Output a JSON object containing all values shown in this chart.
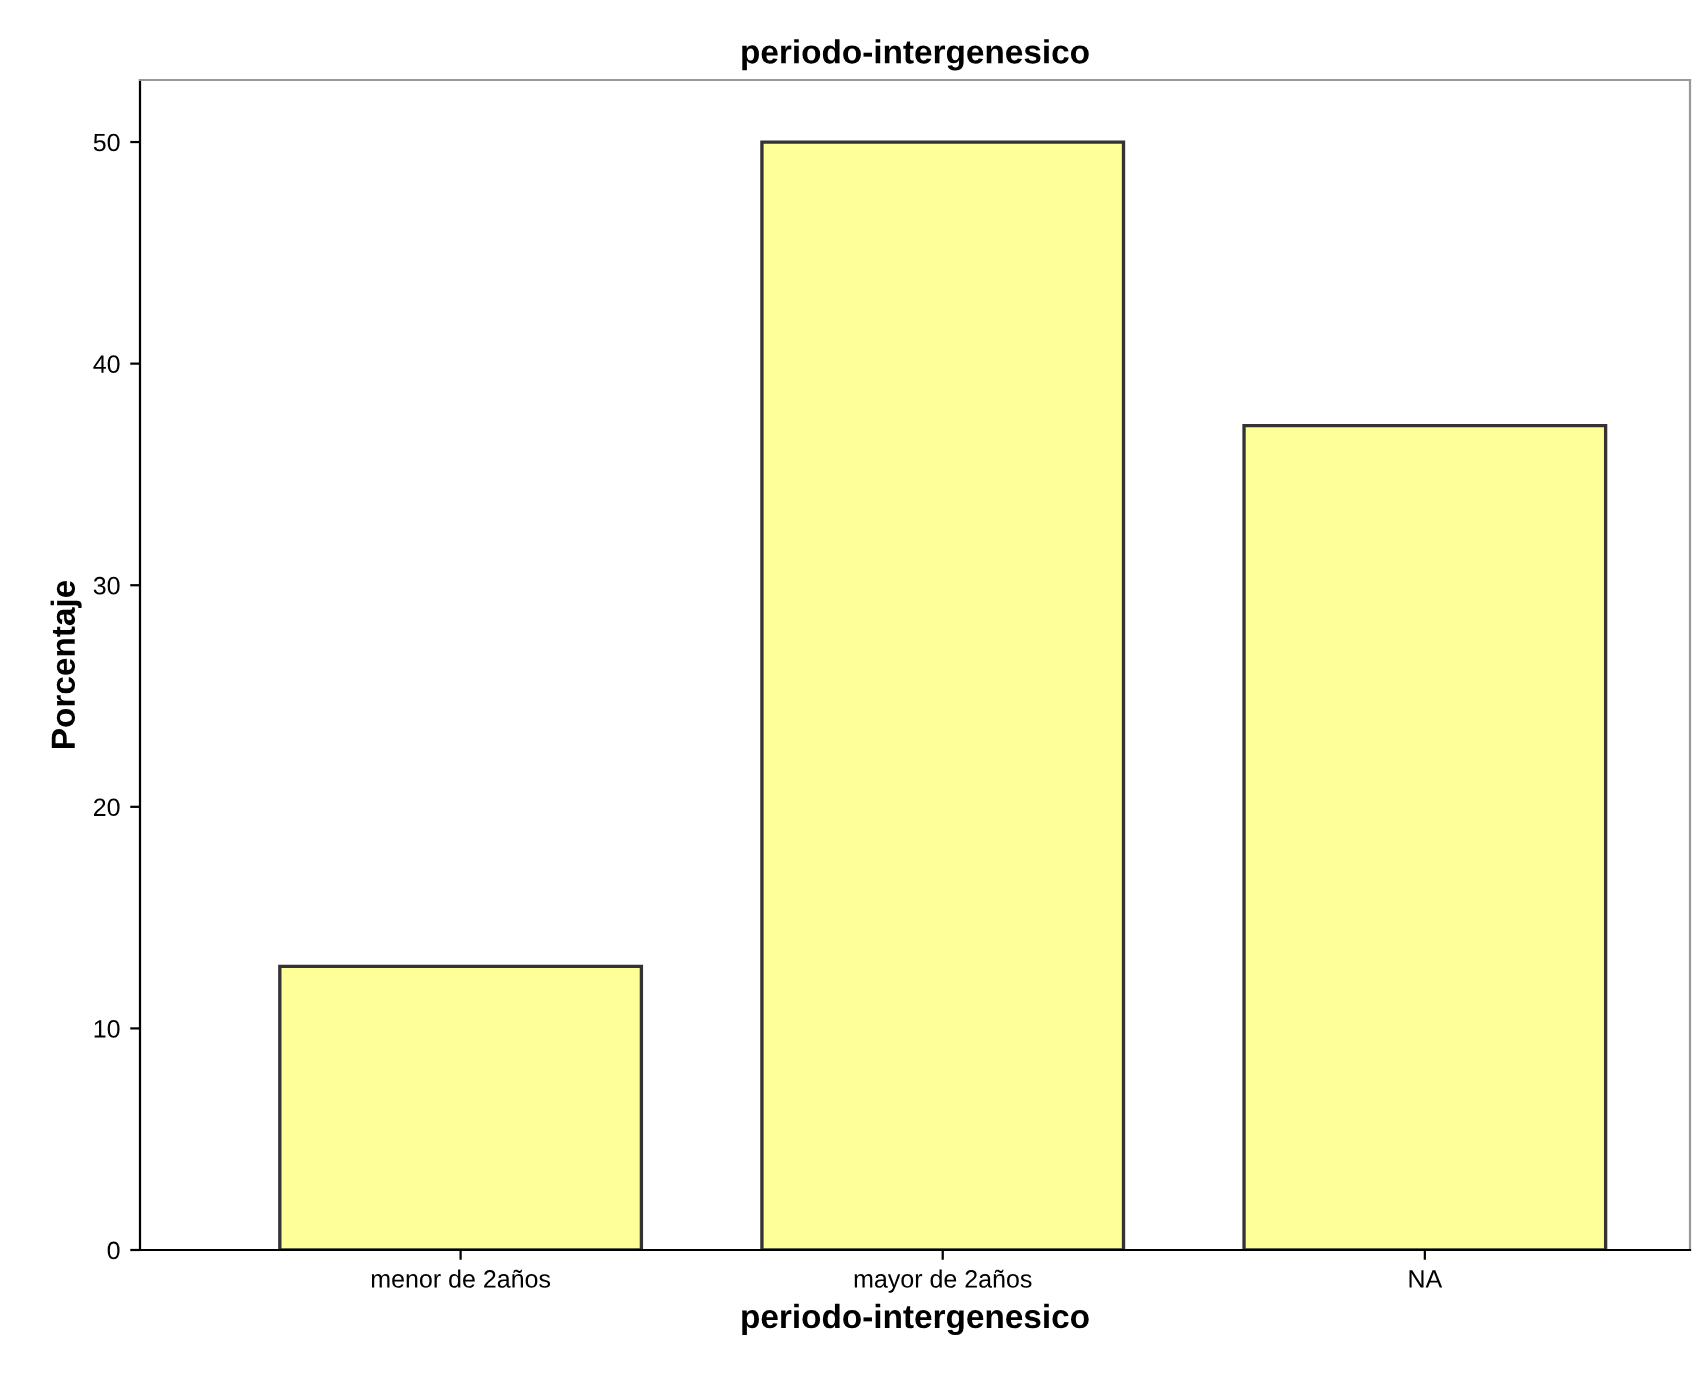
{
  "chart_data": {
    "type": "bar",
    "title": "periodo-intergenesico",
    "xlabel": "periodo-intergenesico",
    "ylabel": "Porcentaje",
    "categories": [
      "menor de 2años",
      "mayor de 2años",
      "NA"
    ],
    "values": [
      12.8,
      50,
      37.2
    ],
    "color": "#ffff99",
    "ylim": [
      0,
      52.8
    ],
    "yticks": [
      0,
      10,
      20,
      30,
      40,
      50
    ],
    "grid": false
  }
}
